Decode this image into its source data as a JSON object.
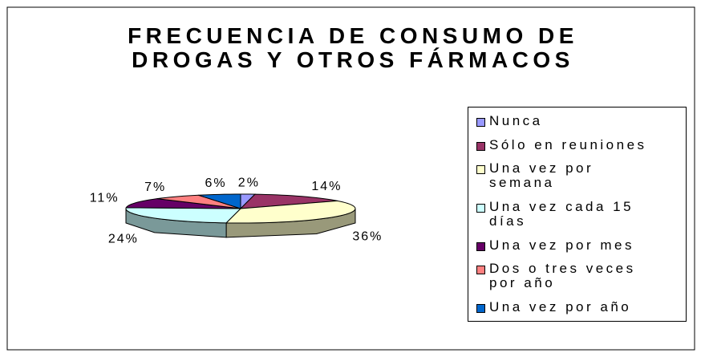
{
  "chart_data": {
    "type": "pie3d",
    "title": "FRECUENCIA DE CONSUMO DE DROGAS Y OTROS FÁRMACOS",
    "categories": [
      "Nunca",
      "Sólo en reuniones",
      "Una vez por semana",
      "Una vez cada 15 días",
      "Una vez por mes",
      "Dos o tres veces por año",
      "Una vez por año"
    ],
    "values": [
      2,
      14,
      36,
      24,
      11,
      7,
      6
    ],
    "value_labels": [
      "2%",
      "14%",
      "36%",
      "24%",
      "11%",
      "7%",
      "6%"
    ],
    "colors": [
      "#9999ff",
      "#993366",
      "#ffffcc",
      "#ccffff",
      "#660066",
      "#ff8080",
      "#0066cc"
    ],
    "legend": "right"
  }
}
